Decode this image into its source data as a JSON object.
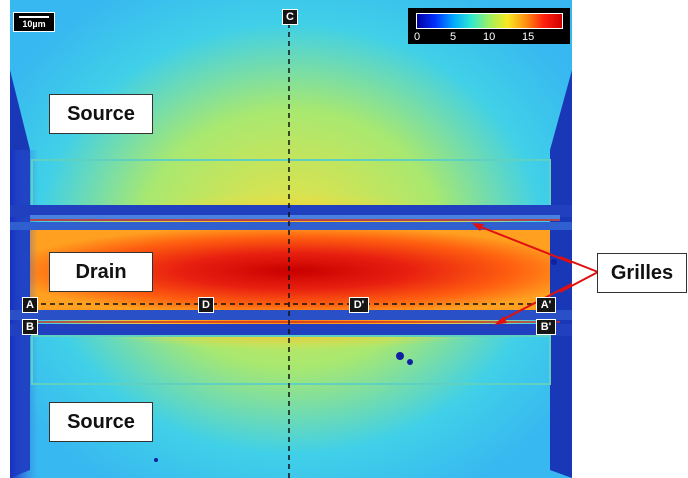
{
  "regions": {
    "source_top": "Source",
    "drain": "Drain",
    "source_bottom": "Source"
  },
  "callout": {
    "grilles": "Grilles"
  },
  "scale_bar": {
    "label": "10µm"
  },
  "colorbar": {
    "ticks": [
      "0",
      "5",
      "10",
      "15"
    ],
    "colors": [
      "#0000a0",
      "#00a8ff",
      "#a0f060",
      "#ff9010",
      "#d00000"
    ]
  },
  "markers": {
    "c": "C",
    "a": "A",
    "a_prime": "A'",
    "b": "B",
    "b_prime": "B'",
    "d": "D",
    "d_prime": "D'"
  }
}
